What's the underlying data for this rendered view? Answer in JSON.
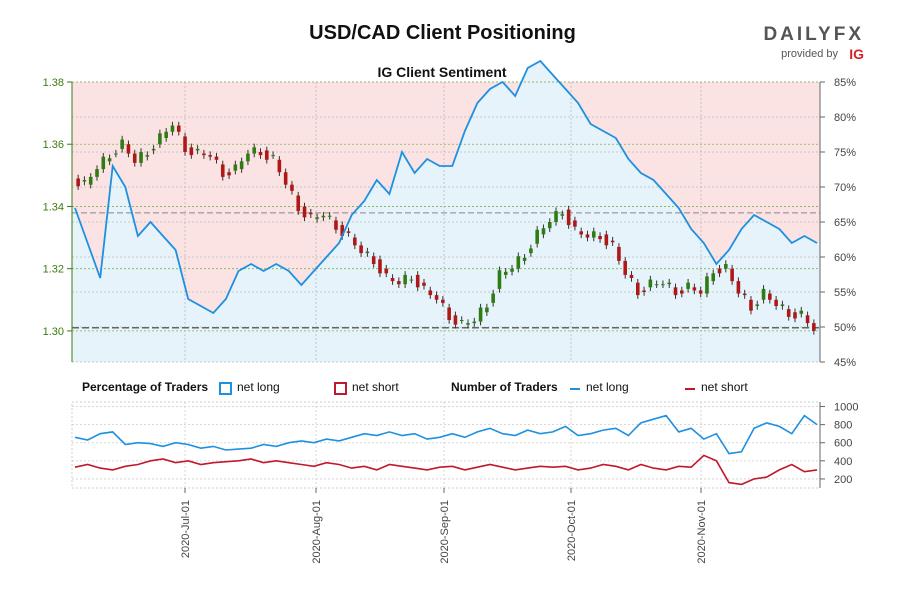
{
  "chart_data": [
    {
      "type": "candlestick-with-sentiment",
      "title": "USD/CAD Client Positioning",
      "subtitle": "IG Client Sentiment",
      "price_axis": {
        "ylim": [
          1.29,
          1.38
        ],
        "ticks": [
          "1.30",
          "1.32",
          "1.34",
          "1.36",
          "1.38"
        ]
      },
      "sentiment_axis": {
        "ylim": [
          45,
          85
        ],
        "unit": "%",
        "ticks": [
          "45%",
          "50%",
          "55%",
          "60%",
          "65%",
          "70%",
          "75%",
          "80%",
          "85%"
        ]
      },
      "x_axis": {
        "ticks": [
          "2020-Jul-01",
          "2020-Aug-01",
          "2020-Sep-01",
          "2020-Oct-01",
          "2020-Nov-01"
        ]
      },
      "reference_lines": {
        "price": 1.301,
        "sentiment_pct": 66.3
      },
      "colors": {
        "long": "#1e90e0",
        "short": "#c0182c",
        "up_candle": "#2e7d12",
        "down_candle": "#b01818",
        "long_fill": "#e6f3fb",
        "short_fill": "#fbe3e3",
        "price_axis_text": "#3d7a14"
      },
      "series": [
        {
          "name": "net long",
          "pct": [
            67,
            62,
            57,
            73,
            70,
            63,
            65,
            63,
            61,
            54,
            53,
            52,
            54,
            58,
            59,
            58,
            59,
            58,
            56,
            58,
            60,
            62,
            66,
            68,
            71,
            69,
            75,
            72,
            74,
            73,
            73,
            78,
            82,
            84,
            85,
            83,
            87,
            88,
            86,
            84,
            82,
            79,
            78,
            77,
            74,
            72,
            71,
            69,
            67,
            64,
            62,
            59,
            61,
            64,
            66,
            65,
            64,
            62,
            63,
            62
          ]
        },
        {
          "name": "net short",
          "pct": [
            33,
            38,
            43,
            27,
            30,
            37,
            35,
            37,
            39,
            46,
            47,
            48,
            46,
            42,
            41,
            42,
            41,
            42,
            44,
            42,
            40,
            38,
            34,
            32,
            29,
            31,
            25,
            28,
            26,
            27,
            27,
            22,
            18,
            16,
            15,
            17,
            13,
            12,
            14,
            16,
            18,
            21,
            22,
            23,
            26,
            28,
            29,
            31,
            33,
            36,
            38,
            41,
            39,
            36,
            34,
            35,
            36,
            38,
            37,
            38
          ]
        }
      ],
      "price_path": [
        1.349,
        1.347,
        1.352,
        1.357,
        1.36,
        1.354,
        1.358,
        1.362,
        1.366,
        1.359,
        1.357,
        1.356,
        1.351,
        1.352,
        1.357,
        1.358,
        1.355,
        1.347,
        1.34,
        1.336,
        1.337,
        1.334,
        1.33,
        1.325,
        1.323,
        1.317,
        1.315,
        1.318,
        1.313,
        1.31,
        1.305,
        1.302,
        1.303,
        1.309,
        1.318,
        1.32,
        1.325,
        1.331,
        1.335,
        1.339,
        1.332,
        1.33,
        1.331,
        1.327,
        1.318,
        1.313,
        1.315,
        1.315,
        1.313,
        1.314,
        1.312,
        1.32,
        1.32,
        1.312,
        1.308,
        1.312,
        1.308,
        1.306,
        1.305,
        1.3
      ]
    },
    {
      "type": "line",
      "title": "",
      "y_axis": {
        "ticks": [
          "200",
          "400",
          "600",
          "800",
          "1000"
        ],
        "ylim": [
          100,
          1050
        ]
      },
      "series": [
        {
          "name": "net long",
          "values": [
            660,
            630,
            700,
            720,
            580,
            600,
            590,
            560,
            600,
            580,
            540,
            560,
            520,
            530,
            540,
            580,
            560,
            600,
            620,
            600,
            640,
            620,
            660,
            700,
            680,
            720,
            680,
            700,
            640,
            660,
            700,
            660,
            720,
            760,
            700,
            680,
            740,
            700,
            720,
            780,
            680,
            700,
            740,
            760,
            680,
            820,
            860,
            900,
            720,
            760,
            640,
            700,
            480,
            500,
            760,
            820,
            780,
            700,
            900,
            800
          ]
        },
        {
          "name": "net short",
          "values": [
            330,
            360,
            320,
            300,
            340,
            360,
            400,
            420,
            380,
            400,
            360,
            380,
            390,
            400,
            420,
            380,
            400,
            380,
            360,
            340,
            380,
            360,
            320,
            340,
            300,
            360,
            340,
            320,
            300,
            330,
            340,
            300,
            330,
            360,
            330,
            300,
            320,
            340,
            330,
            340,
            300,
            320,
            360,
            340,
            300,
            360,
            320,
            300,
            340,
            330,
            460,
            400,
            160,
            140,
            200,
            220,
            300,
            360,
            280,
            300
          ]
        }
      ]
    }
  ],
  "legend": {
    "percentage_header": "Percentage of Traders",
    "percentage_long": "net long",
    "percentage_short": "net short",
    "number_header": "Number of Traders",
    "number_long": "net long",
    "number_short": "net short"
  },
  "branding": {
    "wordmark": "DAILYFX",
    "provided_by": "provided by",
    "partner": "IG"
  }
}
